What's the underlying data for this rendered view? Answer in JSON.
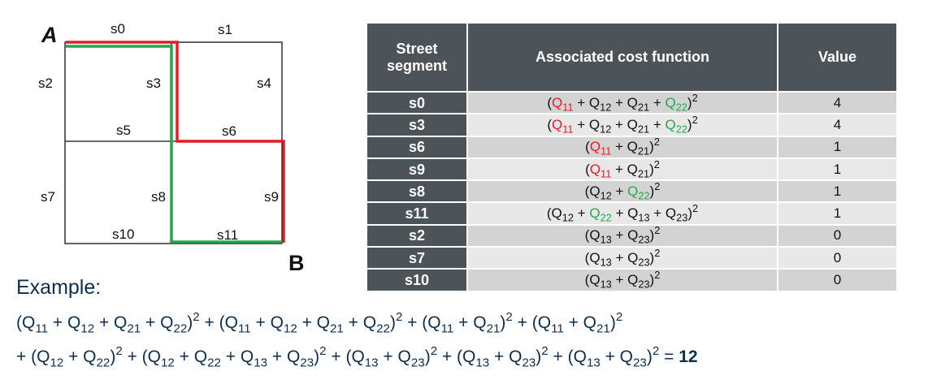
{
  "diagram": {
    "start_point": "A",
    "end_point": "B",
    "segments": [
      "s0",
      "s1",
      "s2",
      "s3",
      "s4",
      "s5",
      "s6",
      "s7",
      "s8",
      "s9",
      "s10",
      "s11"
    ],
    "route_colors": {
      "red_route": "#e31b23",
      "green_route": "#22a84a"
    }
  },
  "table": {
    "headers": {
      "segment_line1": "Street",
      "segment_line2": "segment",
      "function": "Associated cost function",
      "value": "Value"
    },
    "rows": [
      {
        "segment": "s0",
        "value": "4"
      },
      {
        "segment": "s3",
        "value": "4"
      },
      {
        "segment": "s6",
        "value": "1"
      },
      {
        "segment": "s9",
        "value": "1"
      },
      {
        "segment": "s8",
        "value": "1"
      },
      {
        "segment": "s11",
        "value": "1"
      },
      {
        "segment": "s2",
        "value": "0"
      },
      {
        "segment": "s7",
        "value": "0"
      },
      {
        "segment": "s10",
        "value": "0"
      }
    ]
  },
  "example": {
    "label": "Example:",
    "result": "12"
  },
  "colors": {
    "header_bg": "#4d5459",
    "row_light": "#e8e8e8",
    "row_dark": "#d3d3d3",
    "text_blue": "#0c2e50"
  }
}
